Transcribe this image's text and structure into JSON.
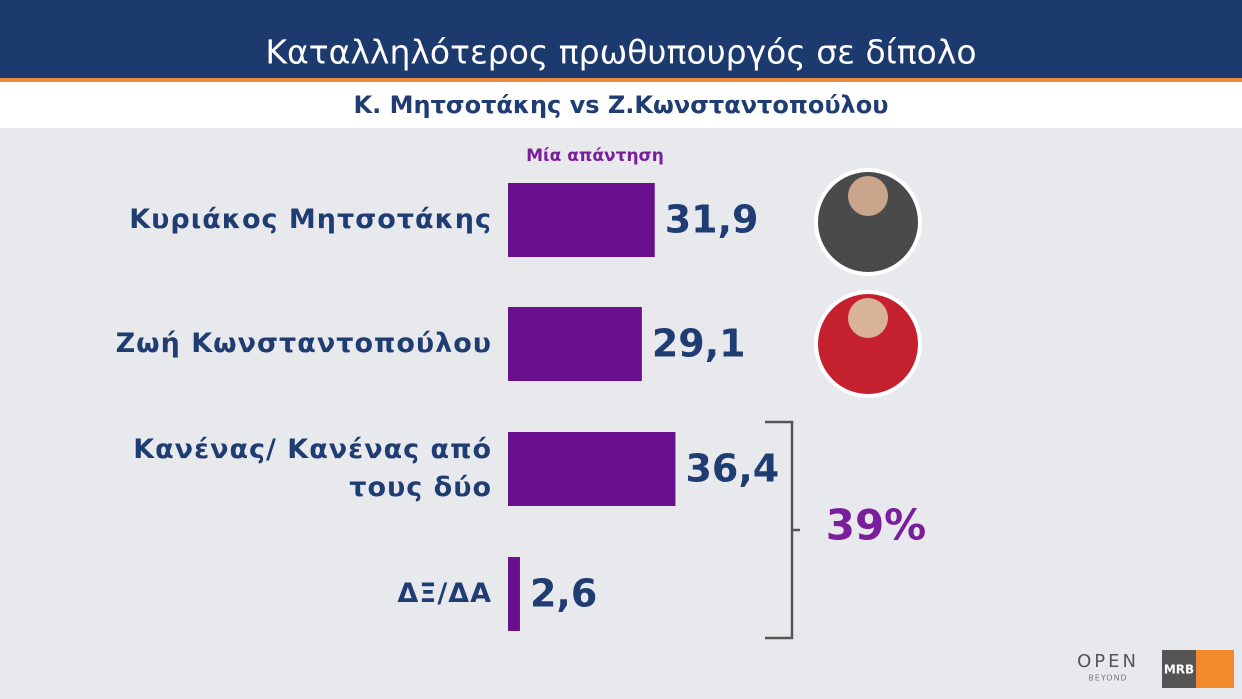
{
  "chart_data": {
    "type": "bar",
    "orientation": "horizontal",
    "title": "Καταλληλότερος πρωθυπουργός σε δίπολο",
    "subtitle": "Κ. Μητσοτάκης vs Ζ.Κωνσταντοπούλου",
    "note": "Μία απάντηση",
    "categories": [
      "Κυριάκος Μητσοτάκης",
      "Ζωή Κωνσταντοπούλου",
      "Κανένας/ Κανένας από τους δύο",
      "ΔΞ/ΔΑ"
    ],
    "values": [
      31.9,
      29.1,
      36.4,
      2.6
    ],
    "value_labels": [
      "31,9",
      "29,1",
      "36,4",
      "2,6"
    ],
    "color": "#6a0f8e",
    "xlim": [
      0,
      100
    ],
    "bracket_label": "39%",
    "logos": [
      "OPEN",
      "BEYOND",
      "MRB"
    ]
  }
}
